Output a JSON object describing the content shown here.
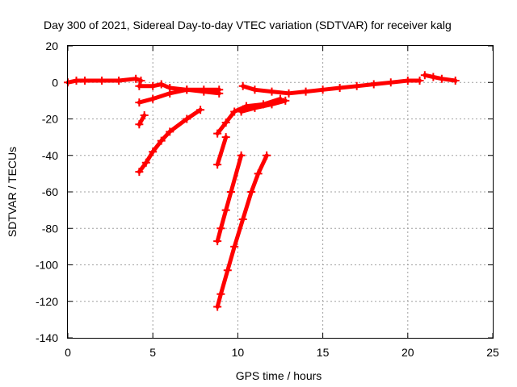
{
  "chart_data": {
    "type": "scatter",
    "title": "Day 300 of 2021, Sidereal Day-to-day VTEC variation (SDTVAR) for receiver kalg",
    "xlabel": "GPS time / hours",
    "ylabel": "SDTVAR / TECUs",
    "xlim": [
      0,
      25
    ],
    "ylim": [
      -140,
      20
    ],
    "xticks": [
      0,
      5,
      10,
      15,
      20,
      25
    ],
    "yticks": [
      20,
      0,
      -20,
      -40,
      -60,
      -80,
      -100,
      -120,
      -140
    ],
    "grid": true,
    "series_color": "#ff0000",
    "tracks": [
      {
        "points": [
          [
            0.0,
            0
          ],
          [
            0.5,
            1
          ],
          [
            1.0,
            1
          ],
          [
            2.0,
            1
          ],
          [
            3.0,
            1
          ],
          [
            4.0,
            2
          ],
          [
            4.3,
            1
          ]
        ]
      },
      {
        "points": [
          [
            4.2,
            -2
          ],
          [
            5.0,
            -2
          ],
          [
            5.5,
            -1
          ],
          [
            6.0,
            -3
          ],
          [
            7.0,
            -4
          ],
          [
            8.0,
            -5
          ],
          [
            8.9,
            -6
          ]
        ]
      },
      {
        "points": [
          [
            4.2,
            -11
          ],
          [
            5.0,
            -9
          ],
          [
            6.0,
            -6
          ],
          [
            7.0,
            -4
          ],
          [
            8.0,
            -4
          ],
          [
            8.9,
            -4
          ]
        ]
      },
      {
        "points": [
          [
            4.2,
            -49
          ],
          [
            4.6,
            -44
          ],
          [
            5.0,
            -38
          ],
          [
            5.5,
            -32
          ],
          [
            6.0,
            -27
          ],
          [
            7.0,
            -20
          ],
          [
            7.8,
            -15
          ]
        ]
      },
      {
        "points": [
          [
            4.2,
            -23
          ],
          [
            4.5,
            -18
          ]
        ]
      },
      {
        "points": [
          [
            8.8,
            -28
          ],
          [
            9.3,
            -22
          ],
          [
            9.8,
            -16
          ],
          [
            10.5,
            -13
          ],
          [
            11.5,
            -12
          ],
          [
            12.5,
            -9
          ]
        ]
      },
      {
        "points": [
          [
            10.2,
            -16
          ],
          [
            11.0,
            -14
          ],
          [
            12.0,
            -12
          ],
          [
            12.8,
            -10
          ]
        ]
      },
      {
        "points": [
          [
            8.8,
            -45
          ],
          [
            9.3,
            -30
          ]
        ]
      },
      {
        "points": [
          [
            8.8,
            -87
          ],
          [
            9.0,
            -80
          ],
          [
            9.3,
            -70
          ],
          [
            9.6,
            -60
          ],
          [
            10.2,
            -40
          ]
        ]
      },
      {
        "points": [
          [
            8.8,
            -123
          ],
          [
            9.0,
            -116
          ],
          [
            9.4,
            -103
          ],
          [
            9.8,
            -90
          ],
          [
            10.3,
            -75
          ],
          [
            10.8,
            -60
          ],
          [
            11.2,
            -50
          ],
          [
            11.7,
            -40
          ]
        ]
      },
      {
        "points": [
          [
            10.3,
            -2
          ],
          [
            11.0,
            -4
          ],
          [
            12.0,
            -5
          ],
          [
            13.0,
            -6
          ],
          [
            14.0,
            -5
          ],
          [
            15.0,
            -4
          ],
          [
            16.0,
            -3
          ],
          [
            17.0,
            -2
          ],
          [
            18.0,
            -1
          ],
          [
            19.0,
            0
          ],
          [
            20.0,
            1
          ],
          [
            20.7,
            1
          ]
        ]
      },
      {
        "points": [
          [
            21.0,
            4
          ],
          [
            21.5,
            3
          ],
          [
            22.0,
            2
          ],
          [
            22.8,
            1
          ]
        ]
      }
    ]
  }
}
